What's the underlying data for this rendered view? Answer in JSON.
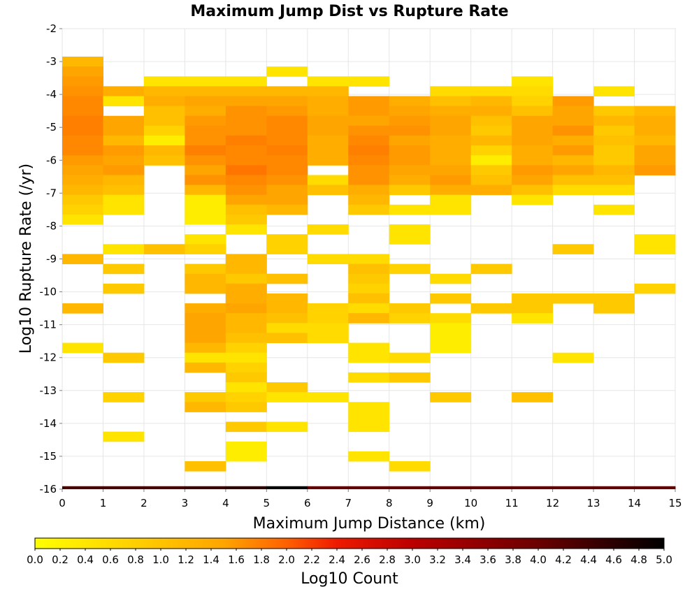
{
  "chart_data": {
    "type": "heatmap",
    "title": "Maximum Jump Dist vs Rupture Rate",
    "xlabel": "Maximum Jump Distance (km)",
    "ylabel": "Log10 Rupture Rate (/yr)",
    "colorbar_label": "Log10 Count",
    "xlim": [
      0,
      15
    ],
    "ylim": [
      -16,
      -2
    ],
    "x_ticks": [
      0,
      1,
      2,
      3,
      4,
      5,
      6,
      7,
      8,
      9,
      10,
      11,
      12,
      13,
      14,
      15
    ],
    "y_ticks": [
      -2,
      -3,
      -4,
      -5,
      -6,
      -7,
      -8,
      -9,
      -10,
      -11,
      -12,
      -13,
      -14,
      -15,
      -16
    ],
    "colorbar_range": [
      0.0,
      5.0
    ],
    "colorbar_ticks": [
      "0.0",
      "0.2",
      "0.4",
      "0.6",
      "0.8",
      "1.0",
      "1.2",
      "1.4",
      "1.6",
      "1.8",
      "2.0",
      "2.2",
      "2.4",
      "2.6",
      "2.8",
      "3.0",
      "3.2",
      "3.4",
      "3.6",
      "3.8",
      "4.0",
      "4.2",
      "4.4",
      "4.6",
      "4.8",
      "5.0"
    ],
    "colormap": [
      "#ffff00",
      "#ffa500",
      "#ff4500",
      "#e00000",
      "#8b0000",
      "#000000"
    ],
    "bin_size_x": 1,
    "bin_size_y": 0.3,
    "grid": true,
    "cells": [
      [
        0,
        -3.0,
        0.8
      ],
      [
        0,
        -3.3,
        1.0
      ],
      [
        0,
        -3.6,
        1.1
      ],
      [
        0,
        -3.9,
        1.2
      ],
      [
        0,
        -4.2,
        1.3
      ],
      [
        0,
        -4.5,
        1.3
      ],
      [
        0,
        -4.8,
        1.4
      ],
      [
        0,
        -5.1,
        1.4
      ],
      [
        0,
        -5.4,
        1.3
      ],
      [
        0,
        -5.7,
        1.3
      ],
      [
        0,
        -6.0,
        1.1
      ],
      [
        0,
        -6.3,
        1.0
      ],
      [
        0,
        -6.6,
        0.9
      ],
      [
        0,
        -6.9,
        0.8
      ],
      [
        0,
        -7.2,
        0.6
      ],
      [
        0,
        -7.5,
        0.5
      ],
      [
        0,
        -7.8,
        0.3
      ],
      [
        0,
        -9.0,
        0.8
      ],
      [
        0,
        -10.5,
        0.8
      ],
      [
        0,
        -11.7,
        0.3
      ],
      [
        1,
        -3.9,
        0.9
      ],
      [
        1,
        -4.2,
        0.3
      ],
      [
        1,
        -4.8,
        1.0
      ],
      [
        1,
        -5.1,
        1.0
      ],
      [
        1,
        -5.4,
        0.8
      ],
      [
        1,
        -5.7,
        1.1
      ],
      [
        1,
        -6.0,
        1.0
      ],
      [
        1,
        -6.3,
        1.1
      ],
      [
        1,
        -6.6,
        0.8
      ],
      [
        1,
        -6.9,
        0.7
      ],
      [
        1,
        -7.2,
        0.3
      ],
      [
        1,
        -7.5,
        0.3
      ],
      [
        1,
        -8.7,
        0.3
      ],
      [
        1,
        -9.3,
        0.6
      ],
      [
        1,
        -9.9,
        0.6
      ],
      [
        1,
        -12.0,
        0.6
      ],
      [
        1,
        -13.2,
        0.5
      ],
      [
        1,
        -14.4,
        0.3
      ],
      [
        2,
        -3.6,
        0.3
      ],
      [
        2,
        -3.9,
        0.8
      ],
      [
        2,
        -4.2,
        0.9
      ],
      [
        2,
        -4.5,
        0.7
      ],
      [
        2,
        -4.8,
        0.7
      ],
      [
        2,
        -5.1,
        0.5
      ],
      [
        2,
        -5.4,
        0.2
      ],
      [
        2,
        -5.7,
        0.8
      ],
      [
        2,
        -6.0,
        0.7
      ],
      [
        2,
        -8.7,
        0.7
      ],
      [
        3,
        -3.6,
        0.3
      ],
      [
        3,
        -3.9,
        0.8
      ],
      [
        3,
        -4.2,
        1.0
      ],
      [
        3,
        -4.5,
        0.9
      ],
      [
        3,
        -4.8,
        1.1
      ],
      [
        3,
        -5.1,
        1.2
      ],
      [
        3,
        -5.4,
        1.2
      ],
      [
        3,
        -5.7,
        1.4
      ],
      [
        3,
        -6.0,
        1.2
      ],
      [
        3,
        -6.3,
        1.0
      ],
      [
        3,
        -6.6,
        1.2
      ],
      [
        3,
        -6.9,
        0.8
      ],
      [
        3,
        -7.2,
        0.2
      ],
      [
        3,
        -7.5,
        0.2
      ],
      [
        3,
        -7.8,
        0.2
      ],
      [
        3,
        -8.4,
        0.3
      ],
      [
        3,
        -8.7,
        0.5
      ],
      [
        3,
        -9.3,
        0.6
      ],
      [
        3,
        -9.6,
        0.8
      ],
      [
        3,
        -9.9,
        0.8
      ],
      [
        3,
        -10.5,
        0.9
      ],
      [
        3,
        -10.8,
        1.0
      ],
      [
        3,
        -11.1,
        1.0
      ],
      [
        3,
        -11.4,
        1.0
      ],
      [
        3,
        -11.7,
        0.8
      ],
      [
        3,
        -12.0,
        0.3
      ],
      [
        3,
        -12.3,
        0.8
      ],
      [
        3,
        -13.2,
        0.6
      ],
      [
        3,
        -13.5,
        0.8
      ],
      [
        3,
        -15.3,
        0.7
      ],
      [
        4,
        -3.6,
        0.3
      ],
      [
        4,
        -3.9,
        0.8
      ],
      [
        4,
        -4.2,
        1.0
      ],
      [
        4,
        -4.5,
        1.2
      ],
      [
        4,
        -4.8,
        1.2
      ],
      [
        4,
        -5.1,
        1.2
      ],
      [
        4,
        -5.4,
        1.4
      ],
      [
        4,
        -5.7,
        1.3
      ],
      [
        4,
        -6.0,
        1.3
      ],
      [
        4,
        -6.3,
        1.5
      ],
      [
        4,
        -6.6,
        1.3
      ],
      [
        4,
        -6.9,
        1.2
      ],
      [
        4,
        -7.2,
        1.0
      ],
      [
        4,
        -7.5,
        0.7
      ],
      [
        4,
        -7.8,
        0.6
      ],
      [
        4,
        -8.1,
        0.3
      ],
      [
        4,
        -9.0,
        0.8
      ],
      [
        4,
        -9.3,
        0.8
      ],
      [
        4,
        -9.6,
        0.6
      ],
      [
        4,
        -9.9,
        0.9
      ],
      [
        4,
        -10.2,
        0.9
      ],
      [
        4,
        -10.5,
        1.0
      ],
      [
        4,
        -10.8,
        0.8
      ],
      [
        4,
        -11.1,
        0.8
      ],
      [
        4,
        -11.4,
        0.7
      ],
      [
        4,
        -11.7,
        0.5
      ],
      [
        4,
        -12.0,
        0.3
      ],
      [
        4,
        -12.3,
        0.5
      ],
      [
        4,
        -12.6,
        0.6
      ],
      [
        4,
        -12.9,
        0.3
      ],
      [
        4,
        -13.2,
        0.5
      ],
      [
        4,
        -13.5,
        0.6
      ],
      [
        4,
        -14.1,
        0.6
      ],
      [
        4,
        -14.7,
        0.2
      ],
      [
        4,
        -15.0,
        0.2
      ],
      [
        5,
        -3.3,
        0.3
      ],
      [
        5,
        -3.9,
        0.8
      ],
      [
        5,
        -4.2,
        1.0
      ],
      [
        5,
        -4.5,
        1.1
      ],
      [
        5,
        -4.8,
        1.3
      ],
      [
        5,
        -5.1,
        1.3
      ],
      [
        5,
        -5.4,
        1.3
      ],
      [
        5,
        -5.7,
        1.4
      ],
      [
        5,
        -6.0,
        1.3
      ],
      [
        5,
        -6.3,
        1.3
      ],
      [
        5,
        -6.6,
        1.2
      ],
      [
        5,
        -6.9,
        1.0
      ],
      [
        5,
        -7.2,
        1.0
      ],
      [
        5,
        -7.5,
        0.8
      ],
      [
        5,
        -8.4,
        0.5
      ],
      [
        5,
        -8.7,
        0.5
      ],
      [
        5,
        -9.6,
        0.7
      ],
      [
        5,
        -10.2,
        0.8
      ],
      [
        5,
        -10.5,
        0.8
      ],
      [
        5,
        -10.8,
        0.7
      ],
      [
        5,
        -11.1,
        0.4
      ],
      [
        5,
        -11.4,
        0.7
      ],
      [
        5,
        -12.9,
        0.6
      ],
      [
        5,
        -13.2,
        0.3
      ],
      [
        5,
        -14.1,
        0.3
      ],
      [
        6,
        -3.6,
        0.3
      ],
      [
        6,
        -3.9,
        0.8
      ],
      [
        6,
        -4.2,
        0.9
      ],
      [
        6,
        -4.5,
        0.9
      ],
      [
        6,
        -4.8,
        1.0
      ],
      [
        6,
        -5.1,
        1.0
      ],
      [
        6,
        -5.4,
        0.9
      ],
      [
        6,
        -5.7,
        0.9
      ],
      [
        6,
        -6.0,
        0.9
      ],
      [
        6,
        -6.6,
        0.4
      ],
      [
        6,
        -6.9,
        0.7
      ],
      [
        6,
        -8.1,
        0.4
      ],
      [
        6,
        -9.0,
        0.4
      ],
      [
        6,
        -10.5,
        0.5
      ],
      [
        6,
        -10.8,
        0.5
      ],
      [
        6,
        -11.1,
        0.4
      ],
      [
        6,
        -11.4,
        0.4
      ],
      [
        6,
        -13.2,
        0.3
      ],
      [
        7,
        -3.6,
        0.3
      ],
      [
        7,
        -4.2,
        1.1
      ],
      [
        7,
        -4.5,
        1.1
      ],
      [
        7,
        -4.8,
        1.0
      ],
      [
        7,
        -5.1,
        1.2
      ],
      [
        7,
        -5.4,
        1.3
      ],
      [
        7,
        -5.7,
        1.4
      ],
      [
        7,
        -6.0,
        1.3
      ],
      [
        7,
        -6.3,
        1.2
      ],
      [
        7,
        -6.6,
        1.2
      ],
      [
        7,
        -6.9,
        0.9
      ],
      [
        7,
        -7.2,
        0.8
      ],
      [
        7,
        -7.5,
        0.6
      ],
      [
        7,
        -9.0,
        0.4
      ],
      [
        7,
        -9.3,
        0.7
      ],
      [
        7,
        -9.6,
        0.6
      ],
      [
        7,
        -9.9,
        0.5
      ],
      [
        7,
        -10.2,
        0.7
      ],
      [
        7,
        -10.5,
        0.4
      ],
      [
        7,
        -10.8,
        0.8
      ],
      [
        7,
        -11.7,
        0.3
      ],
      [
        7,
        -12.0,
        0.3
      ],
      [
        7,
        -12.6,
        0.4
      ],
      [
        7,
        -13.5,
        0.3
      ],
      [
        7,
        -13.8,
        0.3
      ],
      [
        7,
        -14.1,
        0.3
      ],
      [
        7,
        -15.0,
        0.3
      ],
      [
        8,
        -4.2,
        0.9
      ],
      [
        8,
        -4.5,
        1.0
      ],
      [
        8,
        -4.8,
        1.1
      ],
      [
        8,
        -5.1,
        1.2
      ],
      [
        8,
        -5.4,
        1.0
      ],
      [
        8,
        -5.7,
        1.1
      ],
      [
        8,
        -6.0,
        1.1
      ],
      [
        8,
        -6.3,
        1.0
      ],
      [
        8,
        -6.6,
        0.9
      ],
      [
        8,
        -6.9,
        0.6
      ],
      [
        8,
        -7.5,
        0.3
      ],
      [
        8,
        -8.1,
        0.3
      ],
      [
        8,
        -8.4,
        0.3
      ],
      [
        8,
        -9.3,
        0.5
      ],
      [
        8,
        -10.5,
        0.6
      ],
      [
        8,
        -10.8,
        0.5
      ],
      [
        8,
        -12.0,
        0.4
      ],
      [
        8,
        -12.6,
        0.6
      ],
      [
        8,
        -15.3,
        0.4
      ],
      [
        9,
        -3.9,
        0.4
      ],
      [
        9,
        -4.2,
        0.7
      ],
      [
        9,
        -4.5,
        0.9
      ],
      [
        9,
        -4.8,
        1.0
      ],
      [
        9,
        -5.1,
        1.0
      ],
      [
        9,
        -5.4,
        0.9
      ],
      [
        9,
        -5.7,
        0.9
      ],
      [
        9,
        -6.0,
        0.9
      ],
      [
        9,
        -6.3,
        1.0
      ],
      [
        9,
        -6.6,
        1.1
      ],
      [
        9,
        -6.9,
        0.9
      ],
      [
        9,
        -7.2,
        0.3
      ],
      [
        9,
        -7.5,
        0.3
      ],
      [
        9,
        -9.6,
        0.4
      ],
      [
        9,
        -10.2,
        0.6
      ],
      [
        9,
        -10.8,
        0.4
      ],
      [
        9,
        -11.1,
        0.2
      ],
      [
        9,
        -11.4,
        0.2
      ],
      [
        9,
        -11.7,
        0.2
      ],
      [
        9,
        -13.2,
        0.6
      ],
      [
        10,
        -3.9,
        0.4
      ],
      [
        10,
        -4.2,
        0.8
      ],
      [
        10,
        -4.5,
        0.9
      ],
      [
        10,
        -4.8,
        0.7
      ],
      [
        10,
        -5.1,
        0.6
      ],
      [
        10,
        -5.4,
        0.8
      ],
      [
        10,
        -5.7,
        0.5
      ],
      [
        10,
        -6.0,
        0.2
      ],
      [
        10,
        -6.3,
        0.6
      ],
      [
        10,
        -6.6,
        0.7
      ],
      [
        10,
        -6.9,
        0.9
      ],
      [
        10,
        -9.3,
        0.6
      ],
      [
        10,
        -10.5,
        0.6
      ],
      [
        11,
        -3.6,
        0.3
      ],
      [
        11,
        -3.9,
        0.4
      ],
      [
        11,
        -4.2,
        0.5
      ],
      [
        11,
        -4.5,
        0.7
      ],
      [
        11,
        -4.8,
        1.0
      ],
      [
        11,
        -5.1,
        1.0
      ],
      [
        11,
        -5.4,
        1.0
      ],
      [
        11,
        -5.7,
        0.9
      ],
      [
        11,
        -6.0,
        0.9
      ],
      [
        11,
        -6.3,
        1.1
      ],
      [
        11,
        -6.6,
        1.0
      ],
      [
        11,
        -6.9,
        0.7
      ],
      [
        11,
        -7.2,
        0.3
      ],
      [
        11,
        -10.2,
        0.6
      ],
      [
        11,
        -10.5,
        0.6
      ],
      [
        11,
        -10.8,
        0.3
      ],
      [
        11,
        -13.2,
        0.7
      ],
      [
        12,
        -4.2,
        1.1
      ],
      [
        12,
        -4.5,
        1.0
      ],
      [
        12,
        -4.8,
        1.0
      ],
      [
        12,
        -5.1,
        1.2
      ],
      [
        12,
        -5.4,
        0.9
      ],
      [
        12,
        -5.7,
        1.1
      ],
      [
        12,
        -6.0,
        0.8
      ],
      [
        12,
        -6.3,
        1.0
      ],
      [
        12,
        -6.6,
        0.7
      ],
      [
        12,
        -6.9,
        0.4
      ],
      [
        12,
        -8.7,
        0.6
      ],
      [
        12,
        -10.2,
        0.6
      ],
      [
        12,
        -12.0,
        0.3
      ],
      [
        13,
        -3.9,
        0.3
      ],
      [
        13,
        -4.5,
        0.6
      ],
      [
        13,
        -4.8,
        0.8
      ],
      [
        13,
        -5.1,
        0.6
      ],
      [
        13,
        -5.4,
        0.7
      ],
      [
        13,
        -5.7,
        0.6
      ],
      [
        13,
        -6.0,
        0.6
      ],
      [
        13,
        -6.3,
        0.8
      ],
      [
        13,
        -6.6,
        0.7
      ],
      [
        13,
        -6.9,
        0.4
      ],
      [
        13,
        -7.5,
        0.3
      ],
      [
        13,
        -10.2,
        0.6
      ],
      [
        13,
        -10.5,
        0.6
      ],
      [
        14,
        -4.5,
        0.8
      ],
      [
        14,
        -4.8,
        0.9
      ],
      [
        14,
        -5.1,
        0.9
      ],
      [
        14,
        -5.4,
        0.8
      ],
      [
        14,
        -5.7,
        1.0
      ],
      [
        14,
        -6.0,
        1.0
      ],
      [
        14,
        -6.3,
        1.1
      ],
      [
        14,
        -8.4,
        0.3
      ],
      [
        14,
        -8.7,
        0.3
      ],
      [
        14,
        -9.9,
        0.5
      ]
    ],
    "bottom_row_cells": [
      [
        0,
        4.5
      ],
      [
        1,
        4.5
      ],
      [
        2,
        4.5
      ],
      [
        3,
        4.6
      ],
      [
        4,
        4.7
      ],
      [
        5,
        5.0
      ],
      [
        6,
        4.3
      ],
      [
        7,
        4.3
      ],
      [
        8,
        4.3
      ],
      [
        9,
        4.3
      ],
      [
        10,
        4.3
      ],
      [
        11,
        4.3
      ],
      [
        12,
        4.3
      ],
      [
        13,
        4.3
      ],
      [
        14,
        4.3
      ]
    ]
  }
}
